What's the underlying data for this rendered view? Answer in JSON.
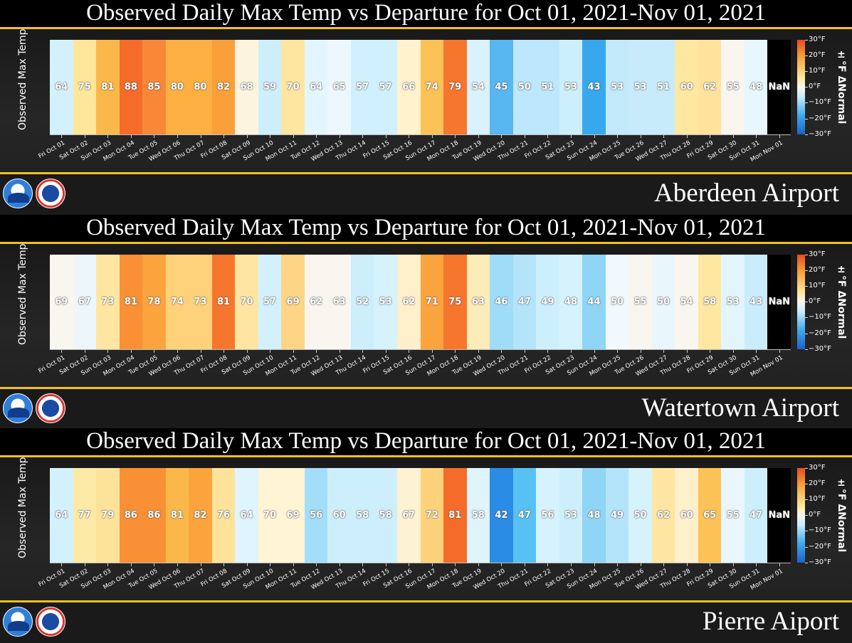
{
  "colorbar": {
    "labels": [
      "30°F",
      "20°F",
      "10°F",
      "0°F",
      "−10°F",
      "−20°F",
      "−30°F"
    ],
    "title": "±°F ΔNormal"
  },
  "dates": [
    "Fri Oct 01",
    "Sat Oct 02",
    "Sun Oct 03",
    "Mon Oct 04",
    "Tue Oct 05",
    "Wed Oct 06",
    "Thu Oct 07",
    "Fri Oct 08",
    "Sat Oct 09",
    "Sun Oct 10",
    "Mon Oct 11",
    "Tue Oct 12",
    "Wed Oct 13",
    "Thu Oct 14",
    "Fri Oct 15",
    "Sat Oct 16",
    "Sun Oct 17",
    "Mon Oct 18",
    "Tue Oct 19",
    "Wed Oct 20",
    "Thu Oct 21",
    "Fri Oct 22",
    "Sat Oct 23",
    "Sun Oct 24",
    "Mon Oct 25",
    "Tue Oct 26",
    "Wed Oct 27",
    "Thu Oct 28",
    "Fri Oct 29",
    "Sat Oct 30",
    "Sun Oct 31",
    "Mon Nov 01"
  ],
  "panels": [
    {
      "title": "Observed Daily Max Temp vs Departure for Oct 01, 2021-Nov 01, 2021",
      "ylabel": "Observed Max Temp",
      "station": "Aberdeen Airport",
      "values": [
        "64",
        "75",
        "81",
        "88",
        "85",
        "80",
        "80",
        "82",
        "68",
        "59",
        "70",
        "64",
        "65",
        "57",
        "57",
        "66",
        "74",
        "79",
        "54",
        "45",
        "50",
        "51",
        "53",
        "43",
        "53",
        "53",
        "51",
        "60",
        "62",
        "55",
        "48",
        "NaN"
      ],
      "colors": [
        "#d3f1fd",
        "#fee79a",
        "#fbb84a",
        "#f56b2a",
        "#f88838",
        "#fcb041",
        "#fcb041",
        "#f9a03b",
        "#fdf4de",
        "#cdeffc",
        "#ffe6a0",
        "#e4f6fd",
        "#ecf8fd",
        "#d1f0fd",
        "#d1f0fd",
        "#fff2cc",
        "#fcc256",
        "#f7762d",
        "#d9f2fd",
        "#58b6f1",
        "#bde7fb",
        "#bde7fb",
        "#cdeffc",
        "#37a8ee",
        "#c3eafb",
        "#c7ebfb",
        "#c7ebfb",
        "#fde7a1",
        "#ffe39c",
        "#f8f6ee",
        "#e6f7fd",
        "#000000"
      ]
    },
    {
      "title": "Observed Daily Max Temp vs Departure for Oct 01, 2021-Nov 01, 2021",
      "ylabel": "Observed Max Temp",
      "station": "Watertown Airport",
      "values": [
        "69",
        "67",
        "73",
        "81",
        "78",
        "74",
        "73",
        "81",
        "70",
        "57",
        "69",
        "62",
        "63",
        "52",
        "53",
        "62",
        "71",
        "75",
        "63",
        "46",
        "47",
        "49",
        "48",
        "44",
        "50",
        "55",
        "50",
        "54",
        "58",
        "53",
        "43",
        "NaN"
      ],
      "colors": [
        "#f8f6ee",
        "#edf7fb",
        "#fee6a2",
        "#f99035",
        "#fba33d",
        "#fdd27a",
        "#fdd27a",
        "#f7762d",
        "#fee6a2",
        "#d3f1fd",
        "#fdd584",
        "#f8f6ee",
        "#f8f6ee",
        "#cdeffc",
        "#d6f2fd",
        "#fff0cc",
        "#fba33d",
        "#f7762d",
        "#fdecb8",
        "#9fdcf8",
        "#b4e4fa",
        "#cdeffc",
        "#d6f2fd",
        "#8ed5f6",
        "#f1f9fc",
        "#f8f6ee",
        "#e9f7fd",
        "#f8f6ee",
        "#fde7a1",
        "#e2f5fd",
        "#c9edfc",
        "#000000"
      ]
    },
    {
      "title": "Observed Daily Max Temp vs Departure for Oct 01, 2021-Nov 01, 2021",
      "ylabel": "Observed Max Temp",
      "station": "Pierre Aiport",
      "values": [
        "64",
        "77",
        "79",
        "86",
        "86",
        "81",
        "82",
        "76",
        "64",
        "70",
        "69",
        "56",
        "60",
        "58",
        "58",
        "67",
        "72",
        "81",
        "58",
        "42",
        "47",
        "56",
        "53",
        "48",
        "49",
        "50",
        "62",
        "60",
        "65",
        "55",
        "47",
        "NaN"
      ],
      "colors": [
        "#d3f1fd",
        "#fde9a6",
        "#fde29a",
        "#f99035",
        "#f99035",
        "#fbb84a",
        "#fba33d",
        "#fde29a",
        "#dff4fd",
        "#fff4d4",
        "#fff4d4",
        "#a3def9",
        "#cdeffc",
        "#cdeffc",
        "#cdeffc",
        "#fdf2d2",
        "#fdd27a",
        "#f56b2a",
        "#dff4fd",
        "#2b8ce6",
        "#58c1f3",
        "#d6f2fd",
        "#cdeffc",
        "#8ed5f6",
        "#b4e4fa",
        "#d6f2fd",
        "#fee6a2",
        "#fff0cc",
        "#fcc256",
        "#e9f7fd",
        "#cdeffc",
        "#000000"
      ]
    }
  ]
}
